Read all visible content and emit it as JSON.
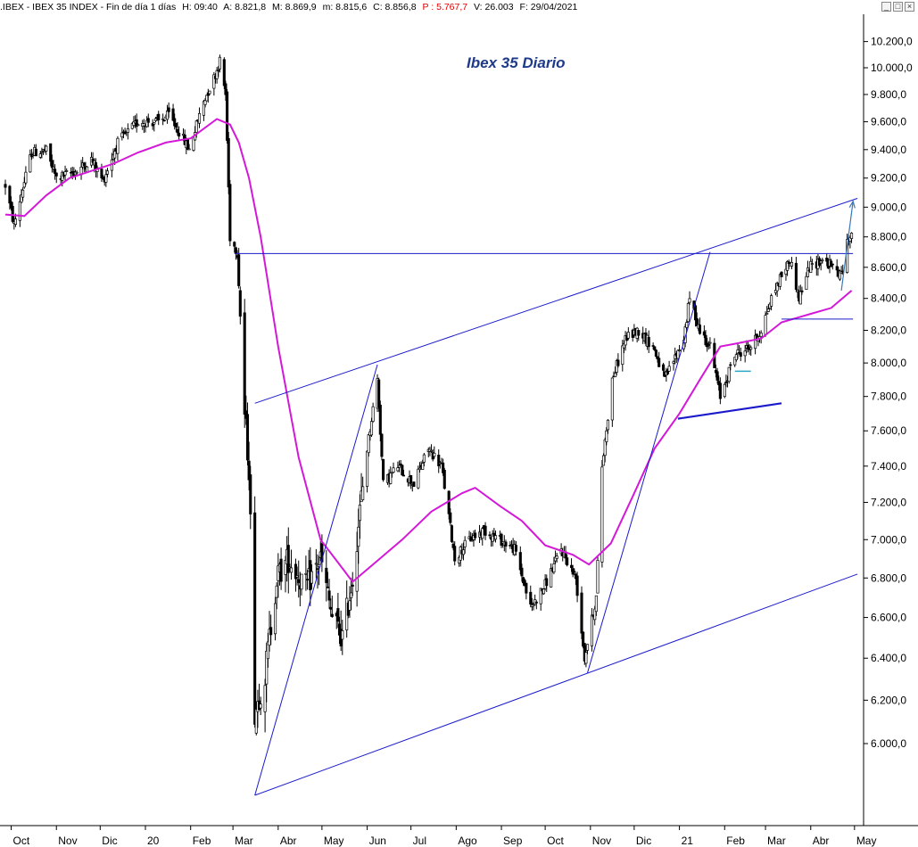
{
  "header": {
    "symbol": ".IBEX - IBEX 35 INDEX - Fin de día 1 días",
    "high": "H: 09:40",
    "a": "A: 8.821,8",
    "max": "M: 8.869,9",
    "min": "m: 8.815,6",
    "close": "C: 8.856,8",
    "p": "P : 5.767,7",
    "volume": "V: 26.003",
    "date": "F: 29/04/2021"
  },
  "window_buttons": [
    "minimize-icon",
    "maximize-icon",
    "close-icon"
  ],
  "colors": {
    "candles": "#000000",
    "moving_average": "#d418d8",
    "trendlines": "#1a1acc",
    "target_arrow": "#3a78b8",
    "short_level": "#2aa8c8",
    "title": "#1f3a8a"
  },
  "chart_data": {
    "type": "candlestick",
    "title": "Ibex 35 Diario",
    "y_tick_labels": [
      "10.200,0",
      "10.000,0",
      "9.800,0",
      "9.600,0",
      "9.400,0",
      "9.200,0",
      "9.000,0",
      "8.800,0",
      "8.600,0",
      "8.400,0",
      "8.200,0",
      "8.000,0",
      "7.800,0",
      "7.600,0",
      "7.400,0",
      "7.200,0",
      "7.000,0",
      "6.800,0",
      "6.600,0",
      "6.400,0",
      "6.200,0",
      "6.000,0"
    ],
    "y_tick_values": [
      10200,
      10000,
      9800,
      9600,
      9400,
      9200,
      9000,
      8800,
      8600,
      8400,
      8200,
      8000,
      7800,
      7600,
      7400,
      7200,
      7000,
      6800,
      6600,
      6400,
      6200,
      6000
    ],
    "ylim": [
      5700,
      10300
    ],
    "y_scale": "log",
    "x_tick_labels": [
      "Oct",
      "Nov",
      "Dic",
      "20",
      "Feb",
      "Mar",
      "Abr",
      "May",
      "Jun",
      "Jul",
      "Ago",
      "Sep",
      "Oct",
      "Nov",
      "Dic",
      "21",
      "Feb",
      "Mar",
      "Abr",
      "May"
    ],
    "price_path": [
      [
        "2019-09-27",
        9150
      ],
      [
        "2019-10-03",
        8880
      ],
      [
        "2019-10-15",
        9380
      ],
      [
        "2019-10-25",
        9390
      ],
      [
        "2019-11-01",
        9200
      ],
      [
        "2019-11-15",
        9250
      ],
      [
        "2019-11-25",
        9330
      ],
      [
        "2019-12-03",
        9180
      ],
      [
        "2019-12-13",
        9450
      ],
      [
        "2019-12-27",
        9600
      ],
      [
        "2020-01-10",
        9600
      ],
      [
        "2020-01-17",
        9650
      ],
      [
        "2020-01-24",
        9530
      ],
      [
        "2020-01-31",
        9400
      ],
      [
        "2020-02-10",
        9750
      ],
      [
        "2020-02-18",
        9950
      ],
      [
        "2020-02-21",
        10050
      ],
      [
        "2020-02-25",
        9800
      ],
      [
        "2020-02-28",
        8800
      ],
      [
        "2020-03-04",
        8700
      ],
      [
        "2020-03-09",
        7700
      ],
      [
        "2020-03-12",
        7400
      ],
      [
        "2020-03-16",
        6150
      ],
      [
        "2020-03-23",
        6320
      ],
      [
        "2020-03-31",
        6800
      ],
      [
        "2020-04-08",
        6900
      ],
      [
        "2020-04-20",
        6750
      ],
      [
        "2020-04-30",
        6900
      ],
      [
        "2020-05-08",
        6600
      ],
      [
        "2020-05-15",
        6500
      ],
      [
        "2020-05-22",
        6800
      ],
      [
        "2020-06-01",
        7500
      ],
      [
        "2020-06-08",
        7900
      ],
      [
        "2020-06-12",
        7300
      ],
      [
        "2020-06-22",
        7400
      ],
      [
        "2020-07-03",
        7300
      ],
      [
        "2020-07-13",
        7500
      ],
      [
        "2020-07-22",
        7400
      ],
      [
        "2020-07-31",
        6900
      ],
      [
        "2020-08-10",
        7000
      ],
      [
        "2020-08-20",
        7050
      ],
      [
        "2020-08-31",
        7000
      ],
      [
        "2020-09-10",
        6950
      ],
      [
        "2020-09-21",
        6650
      ],
      [
        "2020-09-30",
        6750
      ],
      [
        "2020-10-12",
        6950
      ],
      [
        "2020-10-22",
        6800
      ],
      [
        "2020-10-28",
        6400
      ],
      [
        "2020-11-05",
        6700
      ],
      [
        "2020-11-09",
        7400
      ],
      [
        "2020-11-16",
        7900
      ],
      [
        "2020-11-25",
        8150
      ],
      [
        "2020-12-04",
        8200
      ],
      [
        "2020-12-14",
        8100
      ],
      [
        "2020-12-22",
        7900
      ],
      [
        "2021-01-04",
        8150
      ],
      [
        "2021-01-08",
        8400
      ],
      [
        "2021-01-15",
        8200
      ],
      [
        "2021-01-22",
        8100
      ],
      [
        "2021-01-29",
        7800
      ],
      [
        "2021-02-08",
        8050
      ],
      [
        "2021-02-19",
        8100
      ],
      [
        "2021-02-26",
        8200
      ],
      [
        "2021-03-05",
        8400
      ],
      [
        "2021-03-12",
        8550
      ],
      [
        "2021-03-18",
        8650
      ],
      [
        "2021-03-24",
        8400
      ],
      [
        "2021-03-31",
        8600
      ],
      [
        "2021-04-09",
        8650
      ],
      [
        "2021-04-16",
        8600
      ],
      [
        "2021-04-22",
        8550
      ],
      [
        "2021-04-26",
        8750
      ],
      [
        "2021-04-29",
        8860
      ]
    ],
    "moving_average": [
      [
        "2019-09-27",
        8950
      ],
      [
        "2019-10-10",
        8940
      ],
      [
        "2019-10-25",
        9080
      ],
      [
        "2019-11-10",
        9200
      ],
      [
        "2019-11-25",
        9250
      ],
      [
        "2019-12-10",
        9300
      ],
      [
        "2019-12-27",
        9380
      ],
      [
        "2020-01-15",
        9450
      ],
      [
        "2020-02-01",
        9480
      ],
      [
        "2020-02-19",
        9620
      ],
      [
        "2020-02-28",
        9580
      ],
      [
        "2020-03-05",
        9450
      ],
      [
        "2020-03-12",
        9200
      ],
      [
        "2020-03-20",
        8800
      ],
      [
        "2020-04-01",
        8100
      ],
      [
        "2020-04-15",
        7450
      ],
      [
        "2020-04-30",
        7000
      ],
      [
        "2020-05-15",
        6850
      ],
      [
        "2020-05-22",
        6780
      ],
      [
        "2020-06-05",
        6870
      ],
      [
        "2020-06-25",
        7000
      ],
      [
        "2020-07-15",
        7150
      ],
      [
        "2020-08-05",
        7250
      ],
      [
        "2020-08-14",
        7280
      ],
      [
        "2020-08-31",
        7180
      ],
      [
        "2020-09-15",
        7100
      ],
      [
        "2020-10-01",
        6970
      ],
      [
        "2020-10-20",
        6920
      ],
      [
        "2020-10-31",
        6870
      ],
      [
        "2020-11-15",
        6980
      ],
      [
        "2020-12-01",
        7250
      ],
      [
        "2020-12-15",
        7500
      ],
      [
        "2021-01-01",
        7700
      ],
      [
        "2021-01-15",
        7900
      ],
      [
        "2021-01-29",
        8100
      ],
      [
        "2021-02-10",
        8120
      ],
      [
        "2021-02-26",
        8150
      ],
      [
        "2021-03-12",
        8250
      ],
      [
        "2021-03-31",
        8300
      ],
      [
        "2021-04-15",
        8340
      ],
      [
        "2021-04-29",
        8450
      ]
    ],
    "annotations": {
      "resistance_level": 8690,
      "short_support_level": 8270,
      "channel_upper": [
        [
          "2020-03-16",
          7760
        ],
        [
          "2021-05-03",
          9060
        ]
      ],
      "channel_lower": [
        [
          "2020-03-16",
          5770
        ],
        [
          "2021-05-03",
          6820
        ]
      ],
      "rally_line_1": [
        [
          "2020-03-16",
          5770
        ],
        [
          "2020-06-08",
          7990
        ]
      ],
      "rally_line_2": [
        [
          "2020-10-30",
          6330
        ],
        [
          "2021-01-22",
          8700
        ]
      ],
      "support_line_feb": [
        [
          "2020-12-31",
          7670
        ],
        [
          "2021-03-12",
          7760
        ]
      ],
      "target_arrow": [
        [
          "2021-04-22",
          8450
        ],
        [
          "2021-04-30",
          9040
        ]
      ]
    }
  }
}
